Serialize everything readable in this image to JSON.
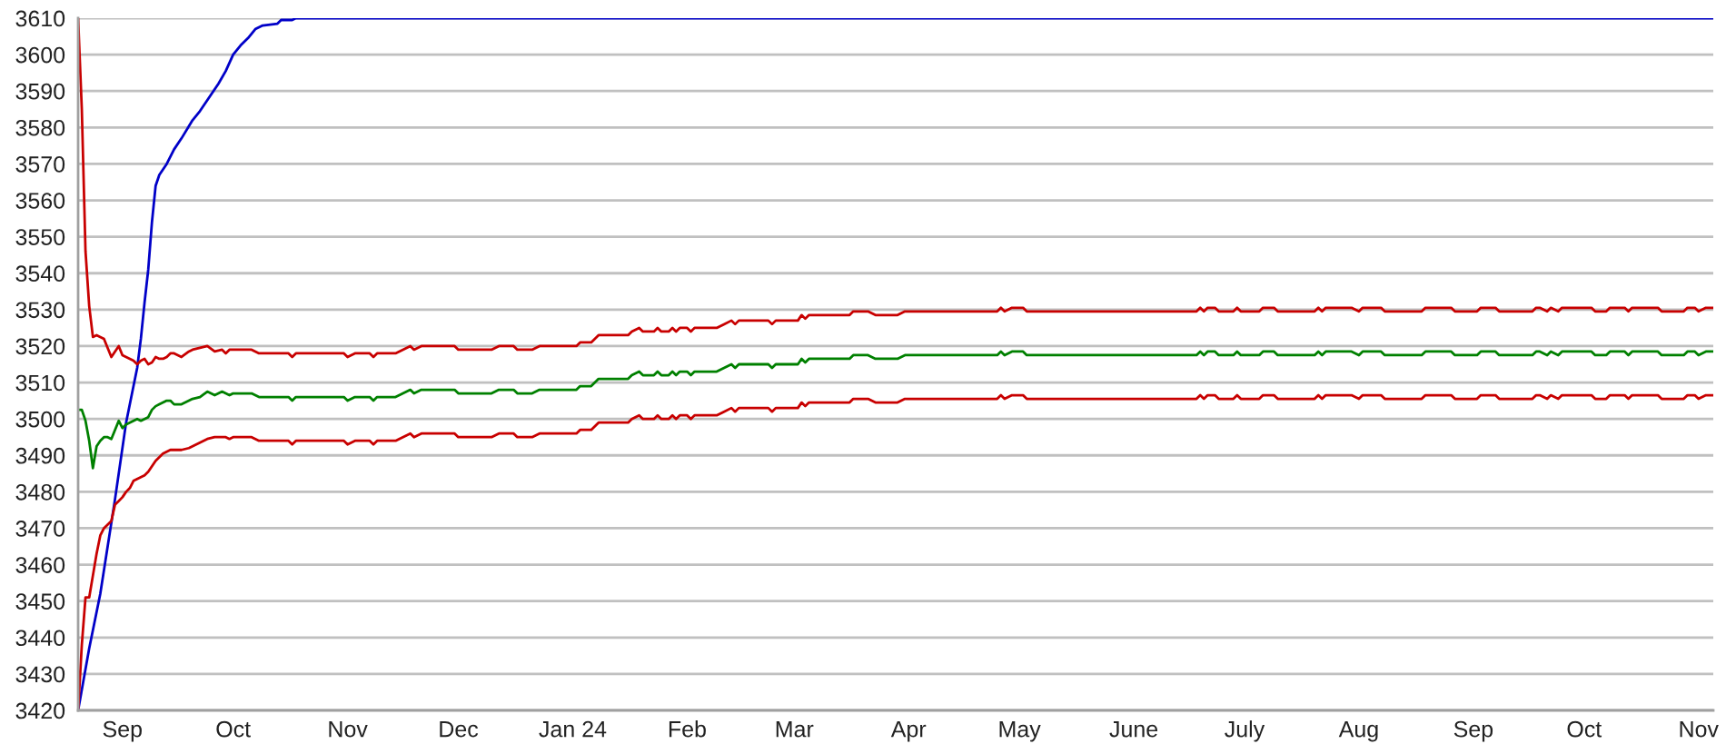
{
  "chart_data": {
    "type": "line",
    "x": [
      "2023-08-20",
      "2023-08-21",
      "2023-08-22",
      "2023-08-23",
      "2023-08-24",
      "2023-08-25",
      "2023-08-26",
      "2023-08-27",
      "2023-08-28",
      "2023-08-29",
      "2023-08-30",
      "2023-08-31",
      "2023-09-01",
      "2023-09-02",
      "2023-09-03",
      "2023-09-04",
      "2023-09-05",
      "2023-09-06",
      "2023-09-07",
      "2023-09-08",
      "2023-09-09",
      "2023-09-10",
      "2023-09-11",
      "2023-09-12",
      "2023-09-13",
      "2023-09-14",
      "2023-09-15",
      "2023-09-16",
      "2023-09-17",
      "2023-09-19",
      "2023-09-20",
      "2023-09-22",
      "2023-09-24",
      "2023-09-26",
      "2023-09-28",
      "2023-09-29",
      "2023-09-30",
      "2023-10-01",
      "2023-10-06",
      "2023-10-08",
      "2023-10-16",
      "2023-10-17",
      "2023-10-18",
      "2023-10-31",
      "2023-11-01",
      "2023-11-03",
      "2023-11-07",
      "2023-11-08",
      "2023-11-09",
      "2023-11-14",
      "2023-11-16",
      "2023-11-18",
      "2023-11-19",
      "2023-11-21",
      "2023-11-30",
      "2023-12-01",
      "2023-12-10",
      "2023-12-12",
      "2023-12-16",
      "2023-12-17",
      "2023-12-21",
      "2023-12-23",
      "2024-01-02",
      "2024-01-03",
      "2024-01-06",
      "2024-01-07",
      "2024-01-08",
      "2024-01-16",
      "2024-01-17",
      "2024-01-19",
      "2024-01-20",
      "2024-01-23",
      "2024-01-24",
      "2024-01-25",
      "2024-01-27",
      "2024-01-28",
      "2024-01-29",
      "2024-01-30",
      "2024-02-01",
      "2024-02-02",
      "2024-02-03",
      "2024-02-09",
      "2024-02-11",
      "2024-02-13",
      "2024-02-14",
      "2024-02-15",
      "2024-02-23",
      "2024-02-24",
      "2024-02-25",
      "2024-03-02",
      "2024-03-03",
      "2024-03-04",
      "2024-03-05",
      "2024-03-16",
      "2024-03-17",
      "2024-03-21",
      "2024-03-23",
      "2024-03-29",
      "2024-03-31",
      "2024-04-25",
      "2024-04-26",
      "2024-04-27",
      "2024-04-29",
      "2024-05-02",
      "2024-05-03",
      "2024-06-18",
      "2024-06-19",
      "2024-06-20",
      "2024-06-21",
      "2024-06-23",
      "2024-06-24",
      "2024-06-28",
      "2024-06-29",
      "2024-06-30",
      "2024-07-05",
      "2024-07-06",
      "2024-07-09",
      "2024-07-10",
      "2024-07-20",
      "2024-07-21",
      "2024-07-22",
      "2024-07-23",
      "2024-07-30",
      "2024-08-01",
      "2024-08-02",
      "2024-08-07",
      "2024-08-08",
      "2024-08-18",
      "2024-08-19",
      "2024-08-26",
      "2024-08-27",
      "2024-09-02",
      "2024-09-03",
      "2024-09-07",
      "2024-09-08",
      "2024-09-17",
      "2024-09-18",
      "2024-09-19",
      "2024-09-21",
      "2024-09-22",
      "2024-09-24",
      "2024-09-25",
      "2024-10-03",
      "2024-10-04",
      "2024-10-07",
      "2024-10-08",
      "2024-10-12",
      "2024-10-13",
      "2024-10-14",
      "2024-10-21",
      "2024-10-22",
      "2024-10-28",
      "2024-10-29",
      "2024-10-31",
      "2024-11-01",
      "2024-11-03",
      "2024-11-05"
    ],
    "series": [
      {
        "color": "#0000c8",
        "x": [
          "2023-08-20",
          "2023-08-23",
          "2023-08-26",
          "2023-08-30",
          "2023-09-02",
          "2023-09-04",
          "2023-09-05",
          "2023-09-06",
          "2023-09-07",
          "2023-09-08",
          "2023-09-09",
          "2023-09-10",
          "2023-09-11",
          "2023-09-13",
          "2023-09-15",
          "2023-09-17",
          "2023-09-20",
          "2023-09-22",
          "2023-09-24",
          "2023-09-27",
          "2023-09-29",
          "2023-10-01",
          "2023-10-03",
          "2023-10-05",
          "2023-10-07",
          "2023-10-09",
          "2023-10-13",
          "2023-10-14",
          "2023-10-17",
          "2023-10-18",
          "2024-11-05"
        ],
        "values": [
          3420,
          3437,
          3452,
          3478,
          3499,
          3509,
          3514,
          3522,
          3532,
          3541,
          3554,
          3564,
          3567,
          3570,
          3574,
          3577,
          3582,
          3584.5,
          3587.5,
          3592,
          3595.5,
          3600,
          3602.5,
          3604.5,
          3607,
          3608,
          3608.5,
          3609.5,
          3609.5,
          3610,
          3610
        ]
      },
      {
        "color": "#c80000",
        "values": [
          3610,
          3585,
          3546,
          3531,
          3522.5,
          3523,
          3522.5,
          3522,
          3519.5,
          3517,
          3518.5,
          3520,
          3517.5,
          3517,
          3516.5,
          3516,
          3515,
          3516,
          3516.5,
          3515,
          3515.5,
          3517,
          3516.5,
          3516.5,
          3517,
          3518,
          3518,
          3517.5,
          3517,
          3518.5,
          3519,
          3519.5,
          3520,
          3518.5,
          3519,
          3518,
          3519,
          3519,
          3519,
          3518,
          3518,
          3517,
          3518,
          3518,
          3517,
          3518,
          3518,
          3517,
          3518,
          3518,
          3519,
          3520,
          3519,
          3520,
          3520,
          3519,
          3519,
          3520,
          3520,
          3519,
          3519,
          3520,
          3520,
          3521,
          3521,
          3522,
          3523,
          3523,
          3524,
          3525,
          3524,
          3524,
          3525,
          3524,
          3524,
          3525,
          3524,
          3525,
          3525,
          3524,
          3525,
          3525,
          3526,
          3527,
          3526,
          3527,
          3527,
          3526,
          3527,
          3527,
          3528.5,
          3527.5,
          3528.5,
          3528.5,
          3529.5,
          3529.5,
          3528.5,
          3528.5,
          3529.5,
          3529.5,
          3530.5,
          3529.5,
          3530.5,
          3530.5,
          3529.5,
          3529.5,
          3530.5,
          3529.5,
          3530.5,
          3530.5,
          3529.5,
          3529.5,
          3530.5,
          3529.5,
          3529.5,
          3530.5,
          3530.5,
          3529.5,
          3529.5,
          3530.5,
          3529.5,
          3530.5,
          3530.5,
          3529.5,
          3530.5,
          3530.5,
          3529.5,
          3529.5,
          3530.5,
          3530.5,
          3529.5,
          3529.5,
          3530.5,
          3530.5,
          3529.5,
          3529.5,
          3530.5,
          3530.5,
          3529.5,
          3530.5,
          3529.5,
          3530.5,
          3530.5,
          3529.5,
          3529.5,
          3530.5,
          3530.5,
          3529.5,
          3530.5,
          3530.5,
          3529.5,
          3529.5,
          3530.5,
          3530.5,
          3529.5,
          3530.5,
          3530.5
        ]
      },
      {
        "color": "#008000",
        "values": [
          3502.5,
          3502.5,
          3499.5,
          3494,
          3486.5,
          3492.5,
          3494,
          3495,
          3495,
          3494.5,
          3497,
          3499.5,
          3497.5,
          3498.5,
          3499,
          3499.5,
          3500,
          3499.5,
          3500,
          3500.5,
          3502.5,
          3503.5,
          3504,
          3504.5,
          3505,
          3505,
          3504,
          3504,
          3504,
          3505,
          3505.5,
          3506,
          3507.5,
          3506.5,
          3507.5,
          3507,
          3506.5,
          3507,
          3507,
          3506,
          3506,
          3505,
          3506,
          3506,
          3505,
          3506,
          3506,
          3505,
          3506,
          3506,
          3507,
          3508,
          3507,
          3508,
          3508,
          3507,
          3507,
          3508,
          3508,
          3507,
          3507,
          3508,
          3508,
          3509,
          3509,
          3510,
          3511,
          3511,
          3512,
          3513,
          3512,
          3512,
          3513,
          3512,
          3512,
          3513,
          3512,
          3513,
          3513,
          3512,
          3513,
          3513,
          3514,
          3515,
          3514,
          3515,
          3515,
          3514,
          3515,
          3515,
          3516.5,
          3515.5,
          3516.5,
          3516.5,
          3517.5,
          3517.5,
          3516.5,
          3516.5,
          3517.5,
          3517.5,
          3518.5,
          3517.5,
          3518.5,
          3518.5,
          3517.5,
          3517.5,
          3518.5,
          3517.5,
          3518.5,
          3518.5,
          3517.5,
          3517.5,
          3518.5,
          3517.5,
          3517.5,
          3518.5,
          3518.5,
          3517.5,
          3517.5,
          3518.5,
          3517.5,
          3518.5,
          3518.5,
          3517.5,
          3518.5,
          3518.5,
          3517.5,
          3517.5,
          3518.5,
          3518.5,
          3517.5,
          3517.5,
          3518.5,
          3518.5,
          3517.5,
          3517.5,
          3518.5,
          3518.5,
          3517.5,
          3518.5,
          3517.5,
          3518.5,
          3518.5,
          3517.5,
          3517.5,
          3518.5,
          3518.5,
          3517.5,
          3518.5,
          3518.5,
          3517.5,
          3517.5,
          3518.5,
          3518.5,
          3517.5,
          3518.5,
          3518.5
        ]
      },
      {
        "color": "#c80000",
        "values": [
          3420,
          3438,
          3451,
          3451,
          3457,
          3463,
          3468,
          3470,
          3471,
          3472,
          3476.5,
          3477.5,
          3478.5,
          3480,
          3481,
          3483,
          3483.5,
          3484,
          3484.5,
          3485.5,
          3487,
          3488.5,
          3489.5,
          3490.5,
          3491,
          3491.5,
          3491.5,
          3491.5,
          3491.5,
          3492,
          3492.5,
          3493.5,
          3494.5,
          3495,
          3495,
          3495,
          3494.5,
          3495,
          3495,
          3494,
          3494,
          3493,
          3494,
          3494,
          3493,
          3494,
          3494,
          3493,
          3494,
          3494,
          3495,
          3496,
          3495,
          3496,
          3496,
          3495,
          3495,
          3496,
          3496,
          3495,
          3495,
          3496,
          3496,
          3497,
          3497,
          3498,
          3499,
          3499,
          3500,
          3501,
          3500,
          3500,
          3501,
          3500,
          3500,
          3501,
          3500,
          3501,
          3501,
          3500,
          3501,
          3501,
          3502,
          3503,
          3502,
          3503,
          3503,
          3502,
          3503,
          3503,
          3504.5,
          3503.5,
          3504.5,
          3504.5,
          3505.5,
          3505.5,
          3504.5,
          3504.5,
          3505.5,
          3505.5,
          3506.5,
          3505.5,
          3506.5,
          3506.5,
          3505.5,
          3505.5,
          3506.5,
          3505.5,
          3506.5,
          3506.5,
          3505.5,
          3505.5,
          3506.5,
          3505.5,
          3505.5,
          3506.5,
          3506.5,
          3505.5,
          3505.5,
          3506.5,
          3505.5,
          3506.5,
          3506.5,
          3505.5,
          3506.5,
          3506.5,
          3505.5,
          3505.5,
          3506.5,
          3506.5,
          3505.5,
          3505.5,
          3506.5,
          3506.5,
          3505.5,
          3505.5,
          3506.5,
          3506.5,
          3505.5,
          3506.5,
          3505.5,
          3506.5,
          3506.5,
          3505.5,
          3505.5,
          3506.5,
          3506.5,
          3505.5,
          3506.5,
          3506.5,
          3505.5,
          3505.5,
          3506.5,
          3506.5,
          3505.5,
          3506.5,
          3506.5
        ]
      }
    ],
    "xlim": [
      "2023-08-20",
      "2024-11-05"
    ],
    "xticks": [
      {
        "value": "2023-09-01",
        "label": "Sep"
      },
      {
        "value": "2023-10-01",
        "label": "Oct"
      },
      {
        "value": "2023-11-01",
        "label": "Nov"
      },
      {
        "value": "2023-12-01",
        "label": "Dec"
      },
      {
        "value": "2024-01-01",
        "label": "Jan 24"
      },
      {
        "value": "2024-02-01",
        "label": "Feb"
      },
      {
        "value": "2024-03-01",
        "label": "Mar"
      },
      {
        "value": "2024-04-01",
        "label": "Apr"
      },
      {
        "value": "2024-05-01",
        "label": "May"
      },
      {
        "value": "2024-06-01",
        "label": "June"
      },
      {
        "value": "2024-07-01",
        "label": "July"
      },
      {
        "value": "2024-08-01",
        "label": "Aug"
      },
      {
        "value": "2024-09-01",
        "label": "Sep"
      },
      {
        "value": "2024-10-01",
        "label": "Oct"
      },
      {
        "value": "2024-11-01",
        "label": "Nov"
      }
    ],
    "ylim": [
      3420,
      3610
    ],
    "yticks": [
      3420,
      3430,
      3440,
      3450,
      3460,
      3470,
      3480,
      3490,
      3500,
      3510,
      3520,
      3530,
      3540,
      3550,
      3560,
      3570,
      3580,
      3590,
      3600,
      3610
    ],
    "grid": "y"
  }
}
